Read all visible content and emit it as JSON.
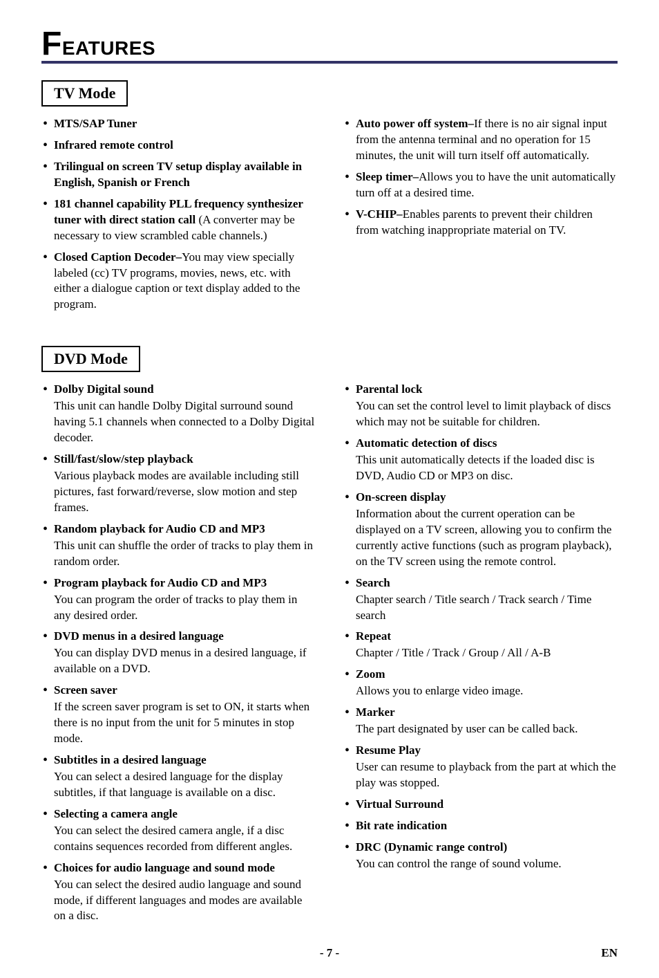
{
  "page_title_big": "F",
  "page_title_rest": "EATURES",
  "colors": {
    "rule": "#333366",
    "text": "#000000",
    "background": "#ffffff"
  },
  "sections": [
    {
      "mode_label": "TV Mode",
      "columns": [
        [
          {
            "lead": "MTS/SAP Tuner",
            "body": ""
          },
          {
            "lead": "Infrared remote control",
            "body": ""
          },
          {
            "lead": "Trilingual on screen TV setup display available in English, Spanish or French",
            "body": ""
          },
          {
            "lead": "181 channel capability PLL frequency synthesizer tuner with direct station call",
            "body": " (A converter may be necessary to view scrambled cable channels.)"
          },
          {
            "lead": "Closed Caption Decoder–",
            "body": "You may view specially labeled (cc) TV programs, movies, news, etc. with either a dialogue caption or text display added to the program."
          }
        ],
        [
          {
            "lead": "Auto power off system–",
            "body": "If there is no air signal input from the antenna terminal and no operation for 15 minutes, the unit will turn itself off automatically."
          },
          {
            "lead": "Sleep timer–",
            "body": "Allows you to have the unit automatically turn off at a desired time."
          },
          {
            "lead": "V-CHIP–",
            "body": "Enables parents to prevent their children from watching inappropriate material on TV."
          }
        ]
      ]
    },
    {
      "mode_label": "DVD Mode",
      "columns": [
        [
          {
            "lead": "Dolby Digital sound",
            "body_block": "This unit can handle Dolby Digital surround sound having 5.1 channels when connected to a Dolby Digital decoder."
          },
          {
            "lead": "Still/fast/slow/step playback",
            "body_block": "Various playback modes are available including still pictures, fast forward/reverse, slow motion and step frames."
          },
          {
            "lead": "Random playback for Audio CD and MP3",
            "body_block": "This unit can shuffle the order of tracks to play them in random order."
          },
          {
            "lead": "Program playback for Audio CD and MP3",
            "body_block": "You can program the order of tracks to play them in any desired order."
          },
          {
            "lead": "DVD menus in a desired language",
            "body_block": "You can display DVD menus in a desired language, if available on a DVD."
          },
          {
            "lead": "Screen saver",
            "body_block": "If the screen saver program is set to ON, it starts when there is no input from the unit for 5 minutes in stop mode."
          },
          {
            "lead": "Subtitles in a desired language",
            "body_block": "You can select a desired language for the display subtitles, if that language is available on a disc."
          },
          {
            "lead": "Selecting a camera angle",
            "body_block": "You can select the desired camera angle, if a disc contains sequences recorded from different angles."
          },
          {
            "lead": "Choices for audio language and sound mode",
            "body_block": "You can select the desired audio language and sound mode, if different languages and modes are available on a disc."
          }
        ],
        [
          {
            "lead": "Parental lock",
            "body_block": "You can set the control level to limit playback of discs which may not be suitable for children."
          },
          {
            "lead": "Automatic detection of discs",
            "body_block": "This unit automatically detects if the loaded disc is DVD, Audio CD or MP3 on disc."
          },
          {
            "lead": "On-screen display",
            "body_block": "Information about the current operation can be displayed on a TV screen, allowing you to confirm the currently active functions (such as program playback), on the TV screen using the remote control."
          },
          {
            "lead": "Search",
            "body_block": "Chapter search / Title search / Track search / Time search"
          },
          {
            "lead": "Repeat",
            "body_block": "Chapter / Title / Track / Group / All / A-B"
          },
          {
            "lead": "Zoom",
            "body_block": "Allows you to enlarge video image."
          },
          {
            "lead": "Marker",
            "body_block": "The part designated by user can be called back."
          },
          {
            "lead": "Resume Play",
            "body_block": "User can resume to playback from the part at which the play was stopped."
          },
          {
            "lead": "Virtual Surround",
            "body_block": ""
          },
          {
            "lead": "Bit rate indication",
            "body_block": ""
          },
          {
            "lead": "DRC (Dynamic range control)",
            "body_block": "You can control the range of sound volume."
          }
        ]
      ]
    }
  ],
  "footer": {
    "page_number": "- 7 -",
    "lang": "EN"
  }
}
